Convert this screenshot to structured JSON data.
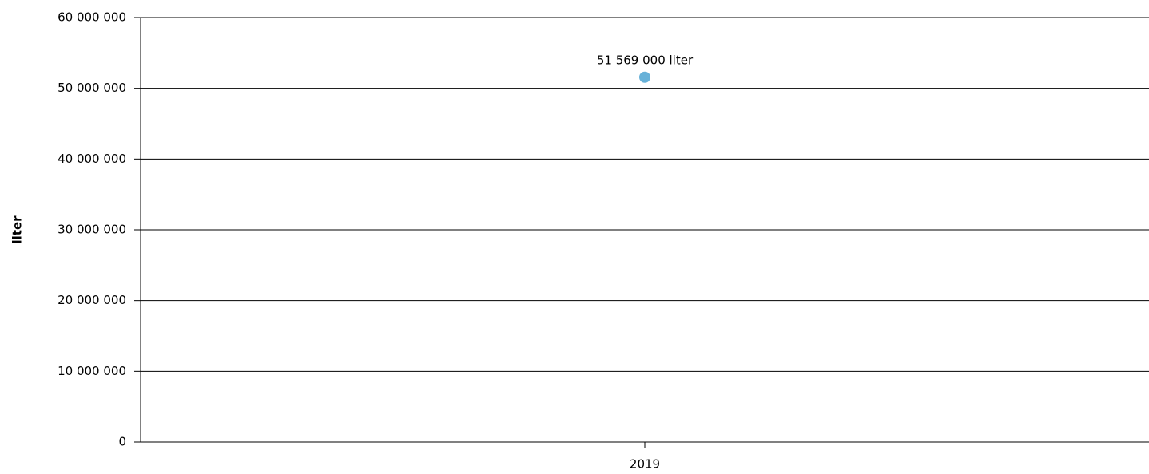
{
  "chart_data": {
    "type": "line",
    "ylabel": "liter",
    "categories": [
      "2019"
    ],
    "series": [
      {
        "name": "liter",
        "color": "#67b1d8",
        "values": [
          51569000
        ],
        "value_labels": [
          "51 569 000 liter"
        ]
      }
    ],
    "ylim": [
      0,
      60000000
    ],
    "yticks": [
      {
        "value": 0,
        "label": "0"
      },
      {
        "value": 10000000,
        "label": "10 000 000"
      },
      {
        "value": 20000000,
        "label": "20 000 000"
      },
      {
        "value": 30000000,
        "label": "30 000 000"
      },
      {
        "value": 40000000,
        "label": "40 000 000"
      },
      {
        "value": 50000000,
        "label": "50 000 000"
      },
      {
        "value": 60000000,
        "label": "60 000 000"
      }
    ],
    "grid": true
  }
}
